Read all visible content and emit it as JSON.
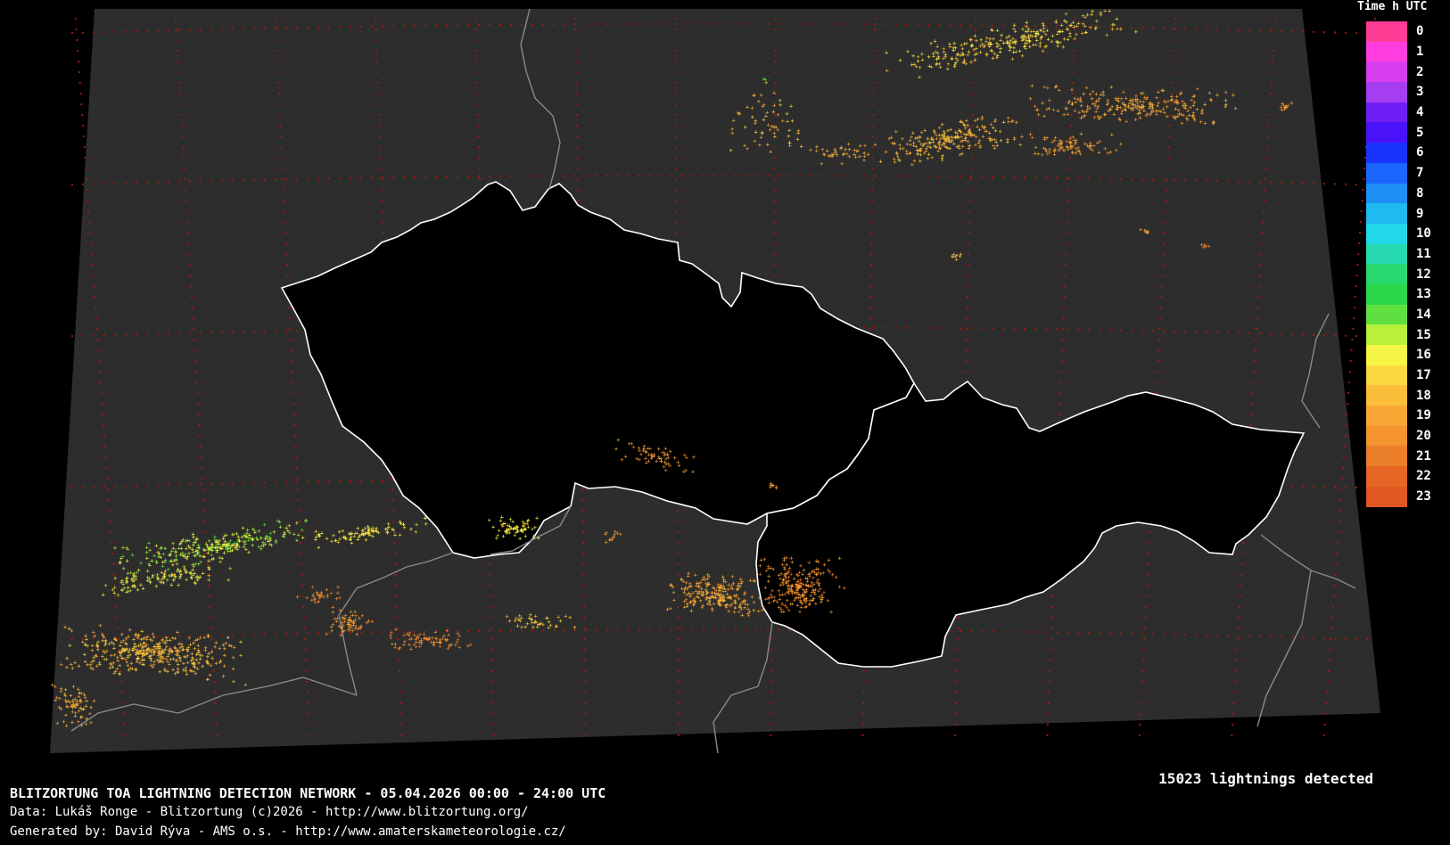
{
  "legend": {
    "title": "Time h UTC",
    "entries": [
      {
        "label": "0",
        "color": "#ff3d95"
      },
      {
        "label": "1",
        "color": "#ff3ddf"
      },
      {
        "label": "2",
        "color": "#d83ef0"
      },
      {
        "label": "3",
        "color": "#a53ef0"
      },
      {
        "label": "4",
        "color": "#6e1ff5"
      },
      {
        "label": "5",
        "color": "#4a12f8"
      },
      {
        "label": "6",
        "color": "#1a33ff"
      },
      {
        "label": "7",
        "color": "#1a66ff"
      },
      {
        "label": "8",
        "color": "#1d8ff5"
      },
      {
        "label": "9",
        "color": "#1fbaf0"
      },
      {
        "label": "10",
        "color": "#22d8e8"
      },
      {
        "label": "11",
        "color": "#26d8b0"
      },
      {
        "label": "12",
        "color": "#2ad870"
      },
      {
        "label": "13",
        "color": "#2ad84a"
      },
      {
        "label": "14",
        "color": "#60e040"
      },
      {
        "label": "15",
        "color": "#b8f03a"
      },
      {
        "label": "16",
        "color": "#f5f545"
      },
      {
        "label": "17",
        "color": "#fbd840"
      },
      {
        "label": "18",
        "color": "#fbbe3a"
      },
      {
        "label": "19",
        "color": "#f9a634"
      },
      {
        "label": "20",
        "color": "#f5932f"
      },
      {
        "label": "21",
        "color": "#ec7f2a"
      },
      {
        "label": "22",
        "color": "#e66725"
      },
      {
        "label": "23",
        "color": "#e05822"
      }
    ]
  },
  "count_text": "15023 lightnings detected",
  "footer": {
    "title": "BLITZORTUNG TOA LIGHTNING DETECTION NETWORK - 05.04.2026  00:00 - 24:00 UTC",
    "data_line": "Data: Lukáš Ronge - Blitzortung (c)2026  -  http://www.blitzortung.org/",
    "generated_line": "Generated by: David Rýva - AMS o.s.  -  http://www.amaterskameteorologie.cz/"
  },
  "colors": {
    "background": "#000000",
    "map_fill": "#2d2d2d",
    "highlight_fill": "#000000",
    "border_white": "#ffffff",
    "border_gray": "#8a8a8a",
    "grid_dot": "#9b1a10"
  }
}
